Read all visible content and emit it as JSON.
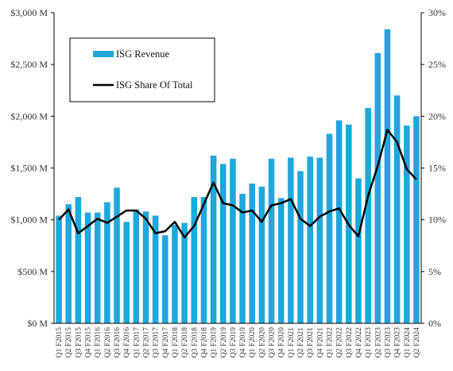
{
  "chart_data": {
    "type": "bar",
    "title": "",
    "xlabel": "",
    "ylabel": "",
    "ylim": [
      0,
      3000
    ],
    "y2lim": [
      0,
      30
    ],
    "grid": false,
    "legend_position": "top-left",
    "categories": [
      "Q1 F2015",
      "Q2 F2015",
      "Q3 F2015",
      "Q4 F2015",
      "Q1 F2016",
      "Q2 F2016",
      "Q3 F2016",
      "Q4 F2016",
      "Q1 F2017",
      "Q2 F2017",
      "Q3 F2017",
      "Q4 F2017",
      "Q1 F2018",
      "Q2 F2018",
      "Q3 F2018",
      "Q4 F2018",
      "Q1 F2019",
      "Q2 F2019",
      "Q3 F2019",
      "Q4 F2019",
      "Q1 F2020",
      "Q2 F2020",
      "Q3 F2020",
      "Q4 F2020",
      "Q1 F2021",
      "Q2 F2021",
      "Q3 F2021",
      "Q4 F2021",
      "Q1 F2022",
      "Q2 F2022",
      "Q3 F2022",
      "Q4 F2022",
      "Q1 F2023",
      "Q2 F2023",
      "Q3 F2023",
      "Q4 F2023",
      "Q1 F2024",
      "Q2 F2024"
    ],
    "y_ticks": [
      "$0 M",
      "$500 M",
      "$1,000 M",
      "$1,500 M",
      "$2,000 M",
      "$2,500 M",
      "$3,000 M"
    ],
    "y2_ticks": [
      "0%",
      "5%",
      "10%",
      "15%",
      "20%",
      "25%",
      "30%"
    ],
    "series": [
      {
        "name": "ISG Revenue",
        "type": "bar",
        "axis": "left",
        "color": "#1FA7DC",
        "values": [
          1040,
          1150,
          1220,
          1070,
          1070,
          1170,
          1310,
          980,
          1100,
          1080,
          1040,
          850,
          950,
          970,
          1220,
          1220,
          1620,
          1540,
          1590,
          1250,
          1350,
          1320,
          1590,
          1210,
          1600,
          1470,
          1610,
          1600,
          1830,
          1960,
          1920,
          1400,
          2080,
          2610,
          2840,
          2200,
          1910,
          2000
        ]
      },
      {
        "name": "ISG Share Of Total",
        "type": "line",
        "axis": "right",
        "color": "#000000",
        "values": [
          10.0,
          11.0,
          8.7,
          9.4,
          10.1,
          9.7,
          10.3,
          10.9,
          10.9,
          10.1,
          8.7,
          8.9,
          9.8,
          8.3,
          9.4,
          11.5,
          13.6,
          11.6,
          11.4,
          10.7,
          10.9,
          9.8,
          11.4,
          11.6,
          12.0,
          10.1,
          9.4,
          10.3,
          10.8,
          11.1,
          9.5,
          8.4,
          12.3,
          15.2,
          18.7,
          17.5,
          14.9,
          13.9
        ]
      }
    ]
  }
}
